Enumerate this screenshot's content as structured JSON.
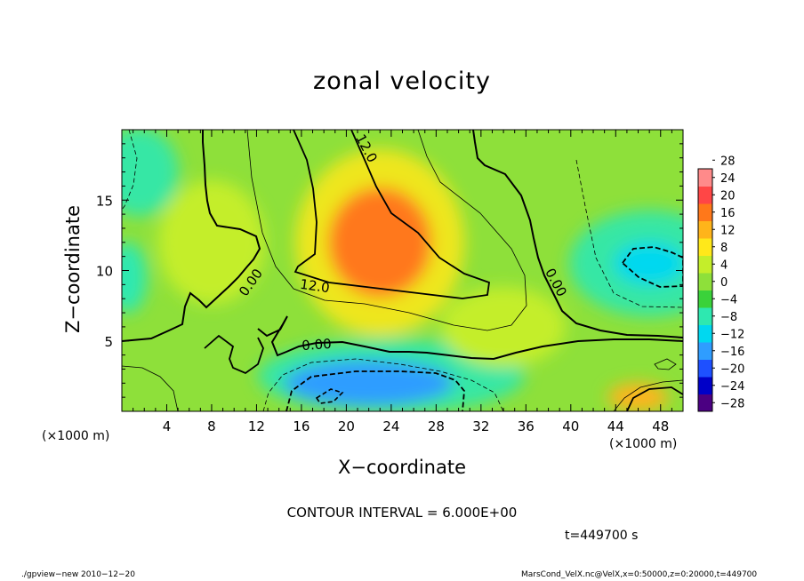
{
  "chart_data": {
    "type": "heatmap",
    "title": "zonal velocity",
    "xlabel": "X−coordinate",
    "ylabel": "Z−coordinate",
    "x_unit": "(×1000 m)",
    "xlim": [
      0,
      50
    ],
    "ylim": [
      0,
      20
    ],
    "x_ticks": [
      4,
      8,
      12,
      16,
      20,
      24,
      28,
      32,
      36,
      40,
      44,
      48
    ],
    "y_ticks": [
      5,
      10,
      15
    ],
    "colorbar": {
      "levels": [
        -28,
        -24,
        -20,
        -16,
        -12,
        -8,
        -4,
        0,
        4,
        8,
        12,
        16,
        20,
        24,
        28
      ],
      "labels": [
        "−28",
        "−24",
        "−20",
        "−16",
        "−12",
        "−8",
        "−4",
        "0",
        "4",
        "8",
        "12",
        "16",
        "20",
        "24",
        "28"
      ]
    },
    "contour_labels": [
      "12.0",
      "12.0",
      "0.00",
      "0.00",
      "0.00"
    ],
    "features": [
      {
        "x": 23,
        "z": 12,
        "value": 16
      },
      {
        "x": 22,
        "z": 2,
        "value": -13
      },
      {
        "x": 47,
        "z": 10.5,
        "value": -10
      },
      {
        "x": 46,
        "z": 1,
        "value": 14
      },
      {
        "x": 0.5,
        "z": 9.5,
        "value": -6
      },
      {
        "x": 8,
        "z": 12,
        "value": 5
      },
      {
        "x": 34,
        "z": 6,
        "value": 6
      }
    ],
    "contour_interval": "CONTOUR INTERVAL = 6.000E+00",
    "time": "t=449700  s"
  },
  "footer": {
    "left": "./gpview−new   2010−12−20",
    "right": "MarsCond_VelX.nc@VelX,x=0:50000,z=0:20000,t=449700"
  }
}
